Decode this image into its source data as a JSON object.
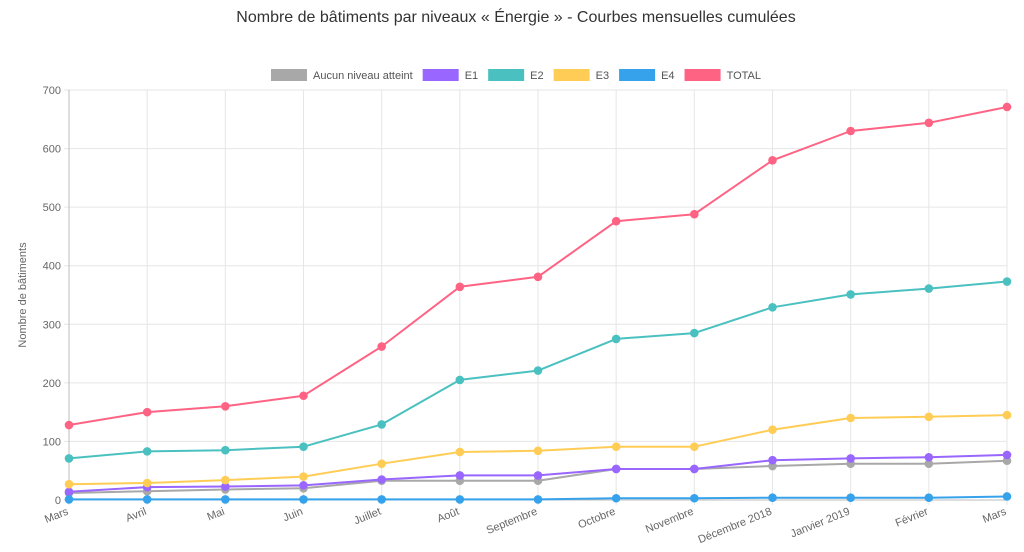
{
  "chart_data": {
    "type": "line",
    "title": "Nombre de bâtiments par niveaux « Énergie » - Courbes mensuelles cumulées",
    "xlabel": "",
    "ylabel": "Nombre de bâtiments",
    "ylim": [
      0,
      700
    ],
    "yticks": [
      0,
      100,
      200,
      300,
      400,
      500,
      600,
      700
    ],
    "grid": true,
    "legend_position": "top-center",
    "categories": [
      "Mars",
      "Avril",
      "Mai",
      "Juin",
      "Juillet",
      "Août",
      "Septembre",
      "Octobre",
      "Novembre",
      "Décembre 2018",
      "Janvier 2019",
      "Février",
      "Mars"
    ],
    "series": [
      {
        "name": "Aucun niveau atteint",
        "color": "#a8a8a8",
        "values": [
          12,
          15,
          18,
          20,
          33,
          33,
          33,
          53,
          53,
          58,
          62,
          62,
          67
        ]
      },
      {
        "name": "E1",
        "color": "#9966ff",
        "values": [
          14,
          22,
          23,
          25,
          35,
          42,
          42,
          53,
          53,
          68,
          71,
          73,
          77
        ]
      },
      {
        "name": "E2",
        "color": "#4bc0c0",
        "values": [
          71,
          83,
          85,
          91,
          129,
          205,
          221,
          275,
          285,
          329,
          351,
          361,
          373
        ]
      },
      {
        "name": "E3",
        "color": "#ffcd56",
        "values": [
          27,
          29,
          34,
          40,
          62,
          82,
          84,
          91,
          91,
          120,
          140,
          142,
          145
        ]
      },
      {
        "name": "E4",
        "color": "#36a2eb",
        "values": [
          1,
          1,
          1,
          1,
          1,
          1,
          1,
          3,
          3,
          4,
          4,
          4,
          6
        ]
      },
      {
        "name": "TOTAL",
        "color": "#ff6384",
        "values": [
          128,
          150,
          160,
          178,
          262,
          364,
          381,
          476,
          488,
          580,
          630,
          644,
          671
        ]
      }
    ]
  }
}
